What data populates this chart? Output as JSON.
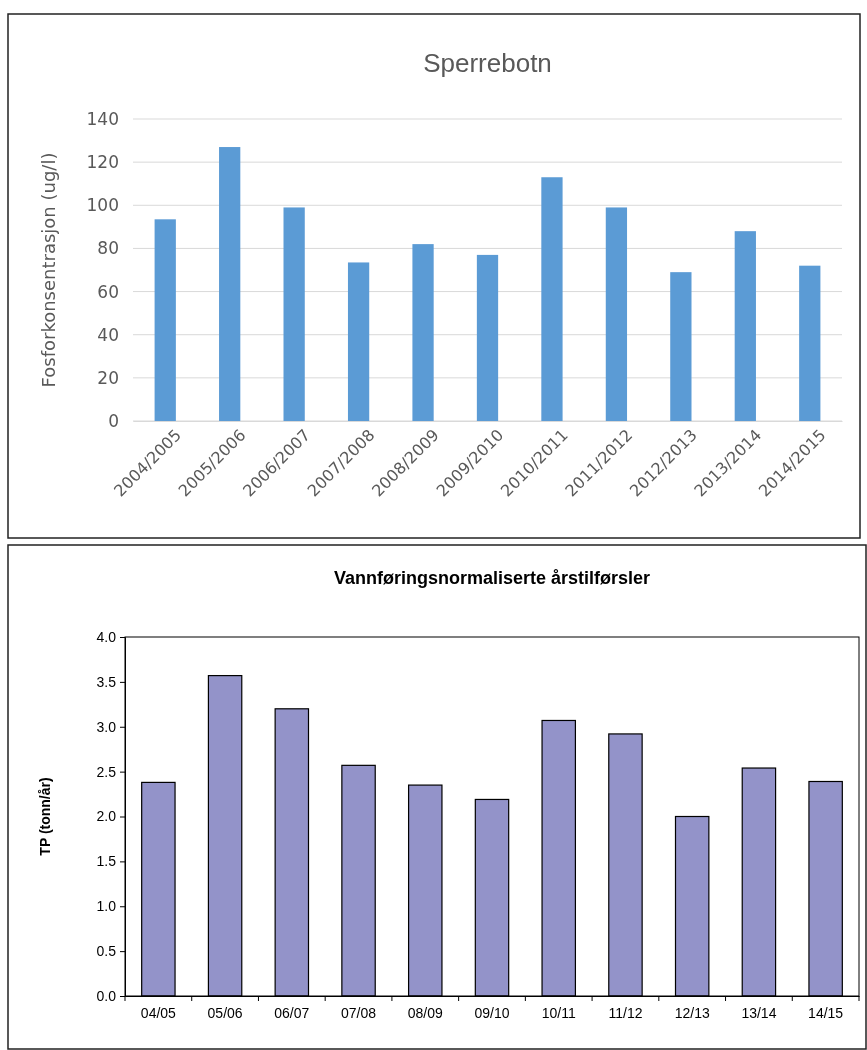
{
  "chart_data": [
    {
      "type": "bar",
      "title": "Sperrebotn",
      "ylabel": "Fosforkonsentrasjon (ug/l)",
      "categories": [
        "2004/2005",
        "2005/2006",
        "2006/2007",
        "2007/2008",
        "2008/2009",
        "2009/2010",
        "2010/2011",
        "2011/2012",
        "2012/2013",
        "2013/2014",
        "2014/2015"
      ],
      "values": [
        93.5,
        127,
        99,
        73.5,
        82,
        77,
        113,
        99,
        69,
        88,
        72
      ],
      "color": "#5b9bd5",
      "ylim": [
        0,
        140
      ],
      "yticks": [
        0,
        20,
        40,
        60,
        80,
        100,
        120,
        140
      ],
      "grid": "y"
    },
    {
      "type": "bar",
      "title": "Vannføringsnormaliserte årstilførsler",
      "ylabel": "TP (tonn/år)",
      "categories": [
        "04/05",
        "05/06",
        "06/07",
        "07/08",
        "08/09",
        "09/10",
        "10/11",
        "11/12",
        "12/13",
        "13/14",
        "14/15"
      ],
      "values": [
        2.38,
        3.57,
        3.2,
        2.57,
        2.35,
        2.19,
        3.07,
        2.92,
        2.0,
        2.54,
        2.39
      ],
      "color": "#9393c9",
      "ylim": [
        0,
        4
      ],
      "yticks": [
        {
          "value": 0,
          "label": "0.0"
        },
        {
          "value": 0.5,
          "label": "0.5"
        },
        {
          "value": 1,
          "label": "1.0"
        },
        {
          "value": 1.5,
          "label": "1.5"
        },
        {
          "value": 2,
          "label": "2.0"
        },
        {
          "value": 2.5,
          "label": "2.5"
        },
        {
          "value": 3,
          "label": "3.0"
        },
        {
          "value": 3.5,
          "label": "3.5"
        },
        {
          "value": 4,
          "label": "4.0"
        }
      ]
    }
  ]
}
